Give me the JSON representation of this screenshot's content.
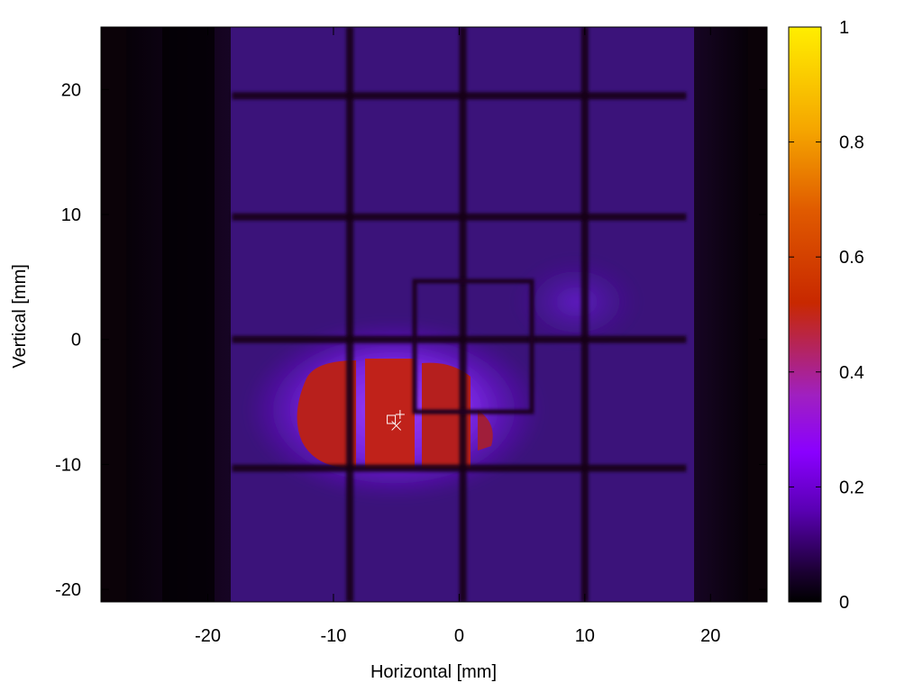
{
  "chart_data": {
    "type": "heatmap",
    "title": "",
    "xlabel": "Horizontal [mm]",
    "ylabel": "Vertical [mm]",
    "xlim": [
      -28.5,
      24.5
    ],
    "ylim": [
      -21,
      25
    ],
    "x_ticks": [
      -20,
      -10,
      0,
      10,
      20
    ],
    "x_tick_labels": [
      "-20",
      "-10",
      "0",
      "10",
      "20"
    ],
    "y_ticks": [
      -20,
      -10,
      0,
      10,
      20
    ],
    "y_tick_labels": [
      "-20",
      "-10",
      "0",
      "10",
      "20"
    ],
    "colorbar": {
      "range": [
        0,
        1
      ],
      "ticks": [
        0,
        0.2,
        0.4,
        0.6,
        0.8,
        1
      ],
      "tick_labels": [
        "0",
        "0.2",
        "0.4",
        "0.6",
        "0.8",
        "1"
      ],
      "colormap": [
        "#000000",
        "#1a0030",
        "#5a00b4",
        "#8a00ff",
        "#a020c0",
        "#c82800",
        "#e05a00",
        "#f5a500",
        "#ffee00"
      ]
    },
    "grid": false,
    "frame_region": {
      "x": [
        -18.5,
        18.5
      ],
      "y": [
        -21,
        25
      ],
      "relative_intensity": 0.12
    },
    "grid_bars": {
      "vertical_x_mm": [
        -8.7,
        0.3,
        10.0
      ],
      "horizontal_y_mm": [
        19.5,
        9.8,
        0.0,
        -10.3
      ],
      "relative_intensity": 0.03
    },
    "inner_rectangle": {
      "x": [
        -4,
        5.5
      ],
      "y": [
        -5.5,
        4.5
      ]
    },
    "hot_spot": {
      "center": [
        -5,
        -6.5
      ],
      "x_extent": [
        -13,
        3.5
      ],
      "y_extent": [
        -10,
        -1.5
      ],
      "peak_value": 0.47
    },
    "secondary_glow": {
      "center": [
        9,
        3
      ],
      "value": 0.16
    },
    "markers": [
      {
        "label": "box",
        "x": -5.4,
        "y": -6.4
      },
      {
        "label": "plus",
        "x": -4.7,
        "y": -6.0
      },
      {
        "label": "cross",
        "x": -5.0,
        "y": -6.9
      }
    ]
  }
}
